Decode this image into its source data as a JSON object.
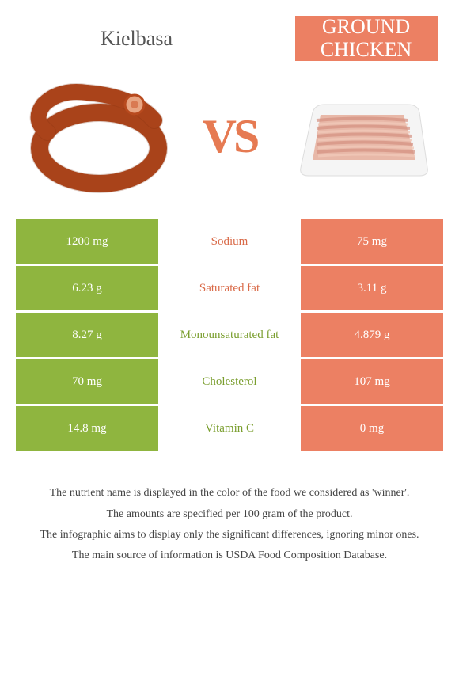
{
  "titles": {
    "left": "Kielbasa",
    "right_line1": "GROUND",
    "right_line2": "CHICKEN"
  },
  "vs_text": "VS",
  "colors": {
    "left_bg": "#8fb53f",
    "right_bg": "#ec8063",
    "vs": "#e67a52",
    "mid_green": "#7a9e2e",
    "mid_orange": "#d96a48",
    "kielbasa_fill": "#b84a1e",
    "kielbasa_stroke": "#7a2e0f",
    "chicken_fill": "#e8b8a8",
    "chicken_tray": "#f5f5f5"
  },
  "rows": [
    {
      "left": "1200 mg",
      "mid": "Sodium",
      "right": "75 mg",
      "winner": "orange"
    },
    {
      "left": "6.23 g",
      "mid": "Saturated fat",
      "right": "3.11 g",
      "winner": "orange"
    },
    {
      "left": "8.27 g",
      "mid": "Monounsaturated fat",
      "right": "4.879 g",
      "winner": "green"
    },
    {
      "left": "70 mg",
      "mid": "Cholesterol",
      "right": "107 mg",
      "winner": "green"
    },
    {
      "left": "14.8 mg",
      "mid": "Vitamin C",
      "right": "0 mg",
      "winner": "green"
    }
  ],
  "footer": [
    "The nutrient name is displayed in the color of the food we considered as 'winner'.",
    "The amounts are specified per 100 gram of the product.",
    "The infographic aims to display only the significant differences, ignoring minor ones.",
    "The main source of information is USDA Food Composition Database."
  ]
}
